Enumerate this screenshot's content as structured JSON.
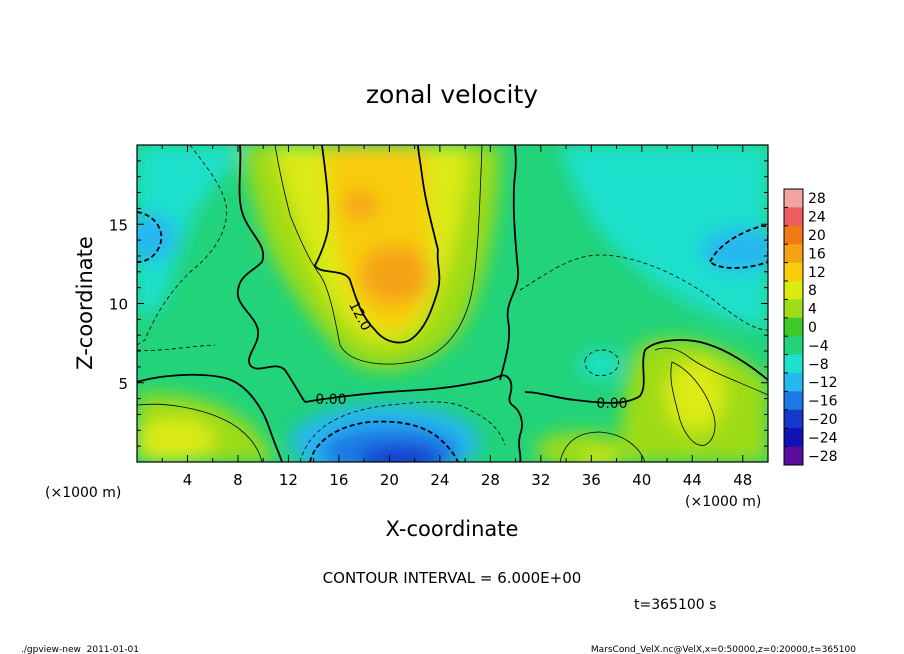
{
  "chart_data": {
    "type": "heatmap",
    "title": "zonal velocity",
    "xlabel": "X-coordinate",
    "ylabel": "Z-coordinate",
    "x_unit_left": "(×1000 m)",
    "x_unit_right": "(×1000 m)",
    "xlim": [
      0,
      50
    ],
    "ylim": [
      0,
      20
    ],
    "x_ticks": [
      4,
      8,
      12,
      16,
      20,
      24,
      28,
      32,
      36,
      40,
      44,
      48
    ],
    "y_ticks": [
      5,
      10,
      15
    ],
    "colorbar": {
      "labels": [
        "28",
        "24",
        "20",
        "16",
        "12",
        "8",
        "4",
        "0",
        "−4",
        "−8",
        "−12",
        "−16",
        "−20",
        "−24",
        "−28"
      ],
      "levels": [
        28,
        24,
        20,
        16,
        12,
        8,
        4,
        0,
        -4,
        -8,
        -12,
        -16,
        -20,
        -24,
        -28
      ],
      "colors": [
        "#f4a3a3",
        "#ee5d5d",
        "#f27a16",
        "#f5a312",
        "#f8cc08",
        "#dcea12",
        "#9edb18",
        "#3dcb2c",
        "#22d37a",
        "#1ee0cc",
        "#26b7f0",
        "#1c78e5",
        "#1738cc",
        "#1410b8",
        "#5a0c9e"
      ]
    },
    "contour_labels": [
      "12.0",
      "0.00",
      "0.00"
    ],
    "contour_interval_text": "CONTOUR INTERVAL = 6.000E+00",
    "time_text": "t=365100 s",
    "footer_left": "./gpview-new  2011-01-01",
    "footer_right": "MarsCond_VelX.nc@VelX,x=0:50000,z=0:20000,t=365100"
  }
}
